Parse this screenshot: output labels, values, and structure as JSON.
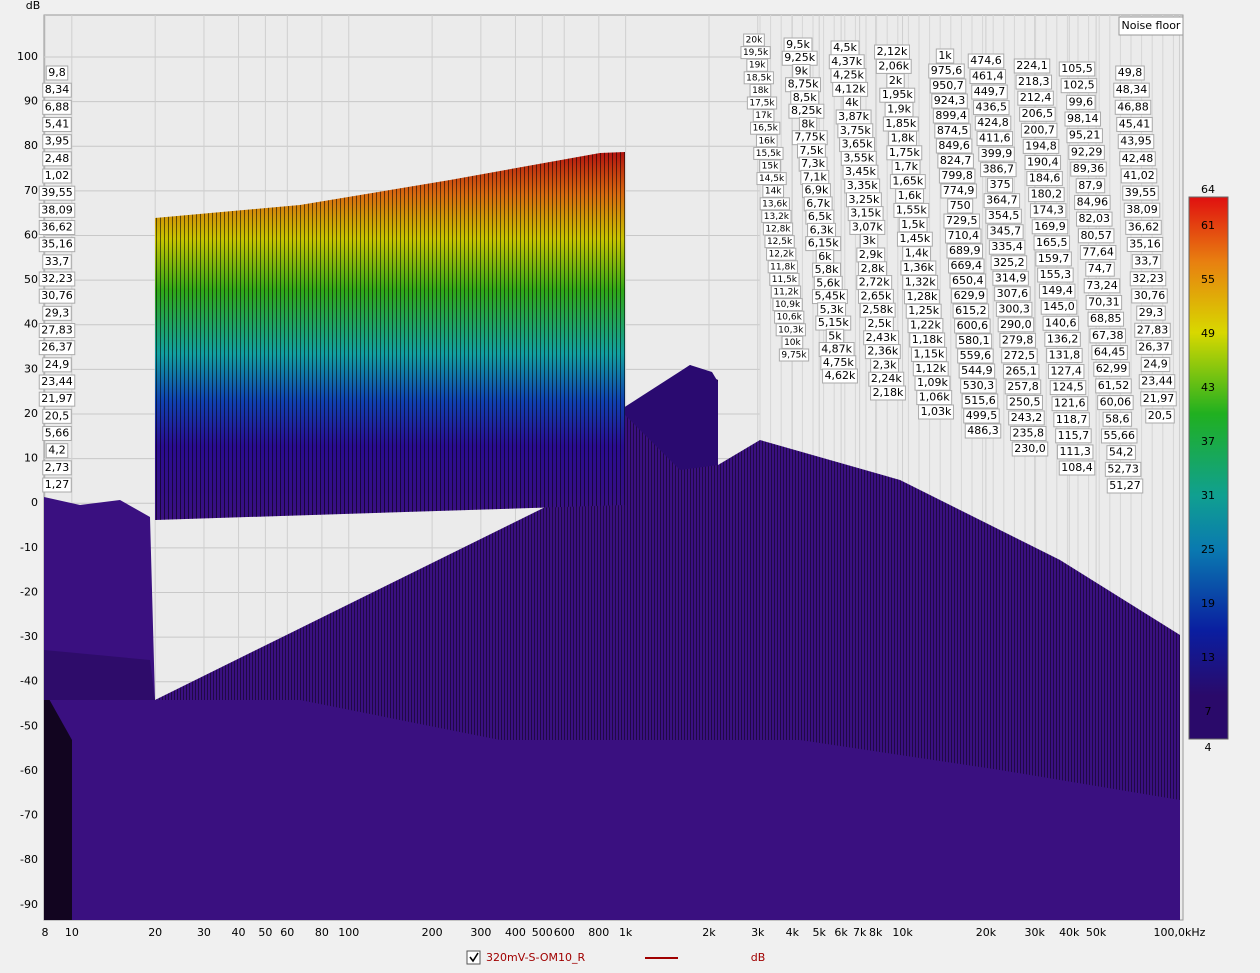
{
  "chart_data": {
    "type": "waterfall",
    "y_label": "dB",
    "annotation": "Noise floor",
    "log_x": true,
    "grid": true,
    "xlim": [
      8,
      103000
    ],
    "ylim": [
      -93.4,
      109.4
    ],
    "yticks": [
      100,
      90,
      80,
      70,
      60,
      50,
      40,
      30,
      20,
      10,
      0,
      -10,
      -20,
      -30,
      -40,
      -50,
      -60,
      -70,
      -80,
      -90
    ],
    "xticks": [
      8,
      10,
      20,
      30,
      40,
      50,
      60,
      80,
      100,
      200,
      300,
      400,
      500,
      600,
      800,
      {
        "value": 1000,
        "label": "1k"
      },
      {
        "value": 2000,
        "label": "2k"
      },
      {
        "value": 3000,
        "label": "3k"
      },
      {
        "value": 4000,
        "label": "4k"
      },
      {
        "value": 5000,
        "label": "5k"
      },
      {
        "value": 6000,
        "label": "6k"
      },
      {
        "value": 7000,
        "label": "7k"
      },
      {
        "value": 8000,
        "label": "8k"
      },
      {
        "value": 10000,
        "label": "10k"
      },
      {
        "value": 20000,
        "label": "20k"
      },
      {
        "value": 30000,
        "label": "30k"
      },
      {
        "value": 40000,
        "label": "40k"
      },
      {
        "value": 50000,
        "label": "50k"
      },
      {
        "value": 100000,
        "label": "100,0kHz"
      }
    ],
    "colorbar": {
      "lim": [
        4,
        64
      ],
      "ticks": [
        64,
        61,
        55,
        49,
        43,
        37,
        31,
        25,
        19,
        13,
        7,
        4
      ]
    },
    "series": [
      {
        "name": "320mV-S-OM10_R",
        "color": "#a00000",
        "unit": "dB"
      }
    ],
    "label_columns": [
      [
        "9,8",
        "8,34",
        "6,88",
        "5,41",
        "3,95",
        "2,48",
        "1,02",
        "39,55",
        "38,09",
        "36,62",
        "35,16",
        "33,7",
        "32,23",
        "30,76",
        "29,3",
        "27,83",
        "26,37",
        "24,9",
        "23,44",
        "21,97",
        "20,5",
        "5,66",
        "4,2",
        "2,73",
        "1,27"
      ],
      [
        "20k",
        "19,5k",
        "19k",
        "18,5k",
        "18k",
        "17,5k",
        "17k",
        "16,5k",
        "16k",
        "15,5k",
        "15k",
        "14,5k",
        "14k",
        "13,6k",
        "13,2k",
        "12,8k",
        "12,5k",
        "12,2k",
        "11,8k",
        "11,5k",
        "11,2k",
        "10,9k",
        "10,6k",
        "10,3k",
        "10k",
        "9,75k"
      ],
      [
        "9,5k",
        "9,25k",
        "9k",
        "8,75k",
        "8,5k",
        "8,25k",
        "8k",
        "7,75k",
        "7,5k",
        "7,3k",
        "7,1k",
        "6,9k",
        "6,7k",
        "6,5k",
        "6,3k",
        "6,15k",
        "6k",
        "5,8k",
        "5,6k",
        "5,45k",
        "5,3k",
        "5,15k",
        "5k",
        "4,87k",
        "4,75k",
        "4,62k"
      ],
      [
        "4,5k",
        "4,37k",
        "4,25k",
        "4,12k",
        "4k",
        "3,87k",
        "3,75k",
        "3,65k",
        "3,55k",
        "3,45k",
        "3,35k",
        "3,25k",
        "3,15k",
        "3,07k",
        "3k",
        "2,9k",
        "2,8k",
        "2,72k",
        "2,65k",
        "2,58k",
        "2,5k",
        "2,43k",
        "2,36k",
        "2,3k",
        "2,24k",
        "2,18k"
      ],
      [
        "2,12k",
        "2,06k",
        "2k",
        "1,95k",
        "1,9k",
        "1,85k",
        "1,8k",
        "1,75k",
        "1,7k",
        "1,65k",
        "1,6k",
        "1,55k",
        "1,5k",
        "1,45k",
        "1,4k",
        "1,36k",
        "1,32k",
        "1,28k",
        "1,25k",
        "1,22k",
        "1,18k",
        "1,15k",
        "1,12k",
        "1,09k",
        "1,06k",
        "1,03k"
      ],
      [
        "1k",
        "975,6",
        "950,7",
        "924,3",
        "899,4",
        "874,5",
        "849,6",
        "824,7",
        "799,8",
        "774,9",
        "750",
        "729,5",
        "710,4",
        "689,9",
        "669,4",
        "650,4",
        "629,9",
        "615,2",
        "600,6",
        "580,1",
        "559,6",
        "544,9",
        "530,3",
        "515,6",
        "499,5",
        "486,3"
      ],
      [
        "474,6",
        "461,4",
        "449,7",
        "436,5",
        "424,8",
        "411,6",
        "399,9",
        "386,7",
        "375",
        "364,7",
        "354,5",
        "345,7",
        "335,4",
        "325,2",
        "314,9",
        "307,6",
        "300,3",
        "290,0",
        "279,8",
        "272,5",
        "265,1",
        "257,8",
        "250,5",
        "243,2",
        "235,8",
        "230,0"
      ],
      [
        "224,1",
        "218,3",
        "212,4",
        "206,5",
        "200,7",
        "194,8",
        "190,4",
        "184,6",
        "180,2",
        "174,3",
        "169,9",
        "165,5",
        "159,7",
        "155,3",
        "149,4",
        "145,0",
        "140,6",
        "136,2",
        "131,8",
        "127,4",
        "124,5",
        "121,6",
        "118,7",
        "115,7",
        "111,3",
        "108,4"
      ],
      [
        "105,5",
        "102,5",
        "99,6",
        "98,14",
        "95,21",
        "92,29",
        "89,36",
        "87,9",
        "84,96",
        "82,03",
        "80,57",
        "77,64",
        "74,7",
        "73,24",
        "70,31",
        "68,85",
        "67,38",
        "64,45",
        "62,99",
        "61,52",
        "60,06",
        "58,6",
        "55,66",
        "54,2",
        "52,73",
        "51,27"
      ],
      [
        "49,8",
        "48,34",
        "46,88",
        "45,41",
        "43,95",
        "42,48",
        "41,02",
        "39,55",
        "38,09",
        "36,62",
        "35,16",
        "33,7",
        "32,23",
        "30,76",
        "29,3",
        "27,83",
        "26,37",
        "24,9",
        "23,44",
        "21,97",
        "20,5"
      ]
    ]
  }
}
